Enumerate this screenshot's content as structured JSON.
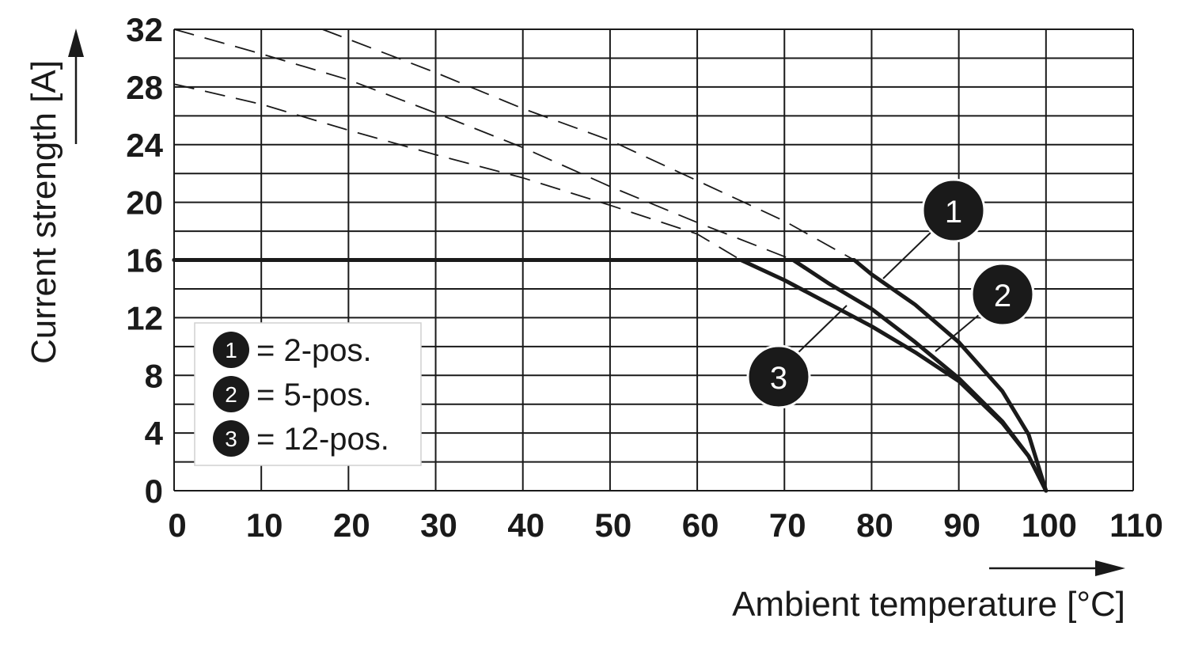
{
  "chart_data": {
    "type": "line",
    "xlabel": "Ambient temperature [°C]",
    "ylabel": "Current strength [A]",
    "xlim": [
      0,
      110
    ],
    "ylim": [
      0,
      32
    ],
    "x_ticks": [
      "0",
      "10",
      "20",
      "30",
      "40",
      "50",
      "60",
      "70",
      "80",
      "90",
      "100",
      "110"
    ],
    "y_ticks": [
      "0",
      "4",
      "8",
      "12",
      "16",
      "20",
      "24",
      "28",
      "32"
    ],
    "grid": true,
    "legend_position": "bottom-left",
    "series": [
      {
        "name": "1",
        "label": "= 2-pos.",
        "solid": [
          [
            0,
            16
          ],
          [
            78,
            16
          ],
          [
            80,
            15
          ],
          [
            85,
            12.9
          ],
          [
            90,
            10.3
          ],
          [
            95,
            6.9
          ],
          [
            98,
            3.9
          ],
          [
            100,
            0
          ]
        ],
        "dashed": [
          [
            17,
            32
          ],
          [
            30,
            29
          ],
          [
            40,
            26.5
          ],
          [
            50,
            24.3
          ],
          [
            60,
            21.5
          ],
          [
            70,
            18.7
          ],
          [
            78,
            16
          ]
        ]
      },
      {
        "name": "2",
        "label": "= 5-pos.",
        "solid": [
          [
            0,
            16
          ],
          [
            71,
            16
          ],
          [
            75,
            14.4
          ],
          [
            80,
            12.6
          ],
          [
            85,
            10.3
          ],
          [
            90,
            7.8
          ],
          [
            95,
            4.8
          ],
          [
            98,
            2.4
          ],
          [
            100,
            0
          ]
        ],
        "dashed": [
          [
            0,
            32
          ],
          [
            10,
            30.3
          ],
          [
            20,
            28.5
          ],
          [
            30,
            26.2
          ],
          [
            40,
            23.8
          ],
          [
            50,
            21.1
          ],
          [
            60,
            18.6
          ],
          [
            71,
            16
          ]
        ]
      },
      {
        "name": "3",
        "label": "= 12-pos.",
        "solid": [
          [
            0,
            16
          ],
          [
            65,
            16
          ],
          [
            70,
            14.6
          ],
          [
            75,
            13
          ],
          [
            80,
            11.4
          ],
          [
            85,
            9.6
          ],
          [
            90,
            7.6
          ],
          [
            95,
            4.7
          ],
          [
            98,
            2.4
          ],
          [
            100,
            0
          ]
        ],
        "dashed": [
          [
            0,
            28.2
          ],
          [
            10,
            26.8
          ],
          [
            20,
            25
          ],
          [
            30,
            23.3
          ],
          [
            40,
            21.7
          ],
          [
            50,
            19.8
          ],
          [
            60,
            17.8
          ],
          [
            65,
            16
          ]
        ]
      }
    ]
  }
}
